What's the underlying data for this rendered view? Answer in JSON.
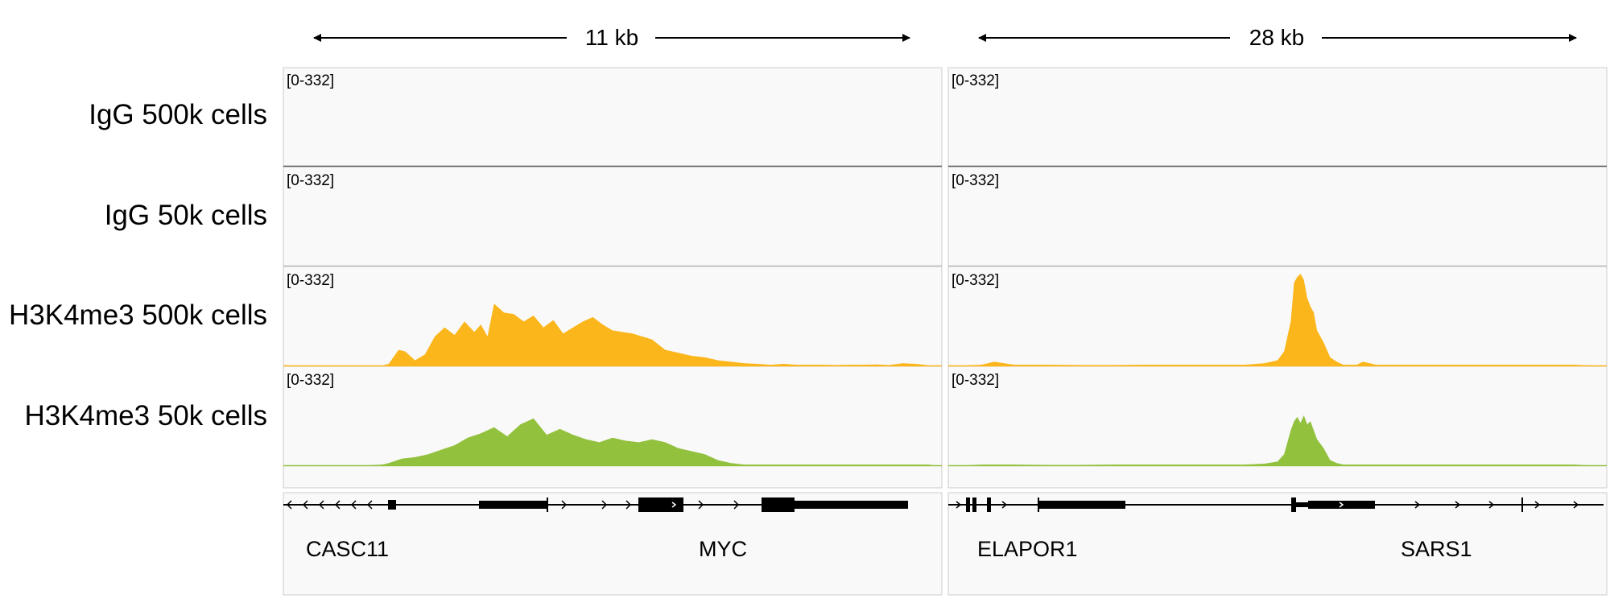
{
  "tracks": [
    {
      "label": "IgG 500k cells",
      "color": "#555555",
      "range": "[0-332]"
    },
    {
      "label": "IgG 50k cells",
      "color": "#b8b8b8",
      "range": "[0-332]"
    },
    {
      "label": "H3K4me3 500k cells",
      "color": "#fbb61b",
      "range": "[0-332]"
    },
    {
      "label": "H3K4me3 50k cells",
      "color": "#92c13e",
      "range": "[0-332]"
    }
  ],
  "chart_data": [
    {
      "type": "area",
      "region_span": "11 kb",
      "data_range": [
        0,
        332
      ],
      "coverage": [
        {
          "series": "IgG 500k cells",
          "x": [
            0,
            2,
            4,
            6,
            8,
            10,
            12,
            14,
            16,
            18,
            20,
            22,
            24,
            26,
            28,
            30,
            32,
            34,
            36,
            38,
            40,
            42,
            44,
            46,
            48,
            50,
            52,
            54,
            56,
            58,
            60,
            62,
            64,
            66,
            68,
            70,
            72,
            74,
            76,
            78,
            80,
            82,
            84,
            86,
            88,
            90,
            92,
            94,
            96,
            98,
            100
          ],
          "y": [
            0,
            0,
            0,
            0,
            0,
            0,
            0,
            0,
            0,
            0,
            0,
            0,
            0,
            0,
            0,
            0,
            0,
            0,
            0,
            0,
            0,
            0,
            0,
            0,
            0,
            0,
            0,
            0,
            0,
            0,
            0,
            0,
            0,
            0,
            0,
            0,
            0,
            0,
            0,
            0,
            0,
            0,
            0,
            0,
            0,
            0,
            0,
            0,
            0,
            0,
            0
          ]
        },
        {
          "series": "IgG 50k cells",
          "x": [
            0,
            2,
            4,
            6,
            8,
            10,
            12,
            14,
            16,
            18,
            20,
            22,
            24,
            26,
            28,
            30,
            32,
            34,
            36,
            38,
            40,
            42,
            44,
            46,
            48,
            50,
            52,
            54,
            56,
            58,
            60,
            62,
            64,
            66,
            68,
            70,
            72,
            74,
            76,
            78,
            80,
            82,
            84,
            86,
            88,
            90,
            92,
            94,
            96,
            98,
            100
          ],
          "y": [
            0,
            0,
            0,
            0,
            0,
            0,
            0,
            0,
            0,
            0,
            0,
            0,
            0,
            0,
            0,
            0,
            0,
            0,
            0,
            0,
            0,
            0,
            0,
            0,
            0,
            0,
            0,
            0,
            0,
            0,
            0,
            0,
            0,
            0,
            0,
            0,
            0,
            0,
            0,
            0,
            0,
            0,
            0,
            0,
            0,
            0,
            0,
            0,
            0,
            0,
            0
          ]
        },
        {
          "series": "H3K4me3 500k cells",
          "x": [
            0,
            5,
            10,
            15,
            16,
            17.5,
            18.5,
            20,
            21.5,
            23,
            24.5,
            26,
            27.5,
            29,
            30,
            31,
            32,
            33.5,
            35,
            36.5,
            38,
            39.5,
            41,
            42.5,
            44,
            45.5,
            47,
            48.5,
            50,
            51.5,
            53,
            54.5,
            56,
            58,
            60,
            62,
            64,
            66,
            68,
            70,
            72,
            74,
            76,
            78,
            80,
            82,
            84,
            86,
            88,
            90,
            92,
            94,
            96,
            98,
            100
          ],
          "y": [
            0,
            0,
            0,
            2,
            8,
            55,
            50,
            20,
            40,
            100,
            130,
            105,
            150,
            115,
            140,
            100,
            210,
            180,
            175,
            150,
            170,
            130,
            155,
            110,
            130,
            150,
            165,
            140,
            120,
            115,
            110,
            100,
            90,
            55,
            45,
            35,
            30,
            20,
            15,
            10,
            8,
            5,
            8,
            5,
            5,
            5,
            4,
            5,
            5,
            6,
            4,
            10,
            8,
            3,
            0
          ]
        },
        {
          "series": "H3K4me3 50k cells",
          "x": [
            0,
            5,
            10,
            15,
            16,
            18,
            20,
            22,
            24,
            26,
            28,
            30,
            32,
            34,
            36,
            38,
            40,
            42,
            44,
            46,
            48,
            50,
            52,
            54,
            56,
            58,
            60,
            62,
            64,
            66,
            68,
            70,
            72,
            74,
            76,
            78,
            80,
            82,
            84,
            86,
            88,
            90,
            92,
            94,
            96,
            98,
            100
          ],
          "y": [
            0,
            0,
            0,
            5,
            10,
            25,
            30,
            40,
            55,
            70,
            95,
            110,
            130,
            100,
            140,
            160,
            105,
            125,
            105,
            90,
            80,
            95,
            85,
            80,
            90,
            80,
            60,
            50,
            40,
            20,
            10,
            5,
            5,
            5,
            5,
            5,
            5,
            5,
            5,
            5,
            5,
            5,
            5,
            5,
            5,
            5,
            0
          ]
        }
      ]
    },
    {
      "type": "area",
      "region_span": "28 kb",
      "data_range": [
        0,
        332
      ],
      "coverage": [
        {
          "series": "IgG 500k cells",
          "x": [
            0,
            2,
            4,
            6,
            8,
            10,
            12,
            14,
            16,
            18,
            20,
            22,
            24,
            26,
            28,
            30,
            32,
            34,
            36,
            38,
            40,
            42,
            44,
            46,
            48,
            50,
            52,
            54,
            56,
            58,
            60,
            62,
            64,
            66,
            68,
            70,
            72,
            74,
            76,
            78,
            80,
            82,
            84,
            86,
            88,
            90,
            92,
            94,
            96,
            98,
            100
          ],
          "y": [
            0,
            0,
            0,
            0,
            0,
            0,
            0,
            0,
            0,
            0,
            0,
            0,
            0,
            0,
            0,
            0,
            0,
            0,
            0,
            0,
            0,
            0,
            0,
            0,
            0,
            0,
            0,
            0,
            0,
            0,
            0,
            0,
            0,
            0,
            0,
            0,
            0,
            0,
            0,
            0,
            0,
            0,
            0,
            0,
            0,
            0,
            0,
            0,
            0,
            0,
            0
          ]
        },
        {
          "series": "IgG 50k cells",
          "x": [
            0,
            2,
            4,
            6,
            8,
            10,
            12,
            14,
            16,
            18,
            20,
            22,
            24,
            26,
            28,
            30,
            32,
            34,
            36,
            38,
            40,
            42,
            44,
            46,
            48,
            50,
            52,
            54,
            56,
            58,
            60,
            62,
            64,
            66,
            68,
            70,
            72,
            74,
            76,
            78,
            80,
            82,
            84,
            86,
            88,
            90,
            92,
            94,
            96,
            98,
            100
          ],
          "y": [
            0,
            0,
            0,
            0,
            0,
            0,
            0,
            0,
            0,
            0,
            0,
            0,
            0,
            0,
            0,
            0,
            0,
            0,
            0,
            0,
            0,
            0,
            0,
            0,
            0,
            0,
            0,
            0,
            0,
            0,
            0,
            0,
            0,
            0,
            0,
            0,
            0,
            0,
            0,
            0,
            0,
            0,
            0,
            0,
            0,
            0,
            0,
            0,
            0,
            0,
            0
          ]
        },
        {
          "series": "H3K4me3 500k cells",
          "x": [
            0,
            5,
            7,
            10,
            15,
            20,
            25,
            30,
            35,
            40,
            45,
            48,
            50,
            51,
            52,
            52.5,
            53,
            53.5,
            54,
            54.5,
            55,
            55.5,
            56,
            57,
            58,
            59,
            60,
            61,
            62,
            63,
            65,
            70,
            75,
            80,
            85,
            90,
            95,
            100
          ],
          "y": [
            0,
            5,
            15,
            5,
            5,
            4,
            4,
            5,
            5,
            5,
            5,
            10,
            20,
            50,
            150,
            280,
            300,
            310,
            290,
            230,
            200,
            180,
            120,
            80,
            30,
            15,
            5,
            5,
            5,
            15,
            5,
            5,
            5,
            5,
            5,
            5,
            5,
            0
          ]
        },
        {
          "series": "H3K4me3 50k cells",
          "x": [
            0,
            5,
            10,
            15,
            20,
            25,
            30,
            35,
            40,
            45,
            48,
            50,
            51,
            52,
            52.5,
            53,
            53.5,
            54,
            54.5,
            55,
            55.5,
            56,
            57,
            58,
            59,
            60,
            65,
            70,
            75,
            80,
            85,
            90,
            95,
            100
          ],
          "y": [
            0,
            5,
            5,
            4,
            4,
            5,
            5,
            5,
            5,
            5,
            8,
            15,
            40,
            120,
            150,
            165,
            145,
            170,
            140,
            150,
            120,
            90,
            60,
            20,
            10,
            5,
            5,
            5,
            5,
            5,
            5,
            5,
            5,
            0
          ]
        }
      ]
    }
  ],
  "genes_left": [
    {
      "name": "CASC11"
    },
    {
      "name": "MYC"
    }
  ],
  "genes_right": [
    {
      "name": "ELAPOR1"
    },
    {
      "name": "SARS1"
    }
  ]
}
